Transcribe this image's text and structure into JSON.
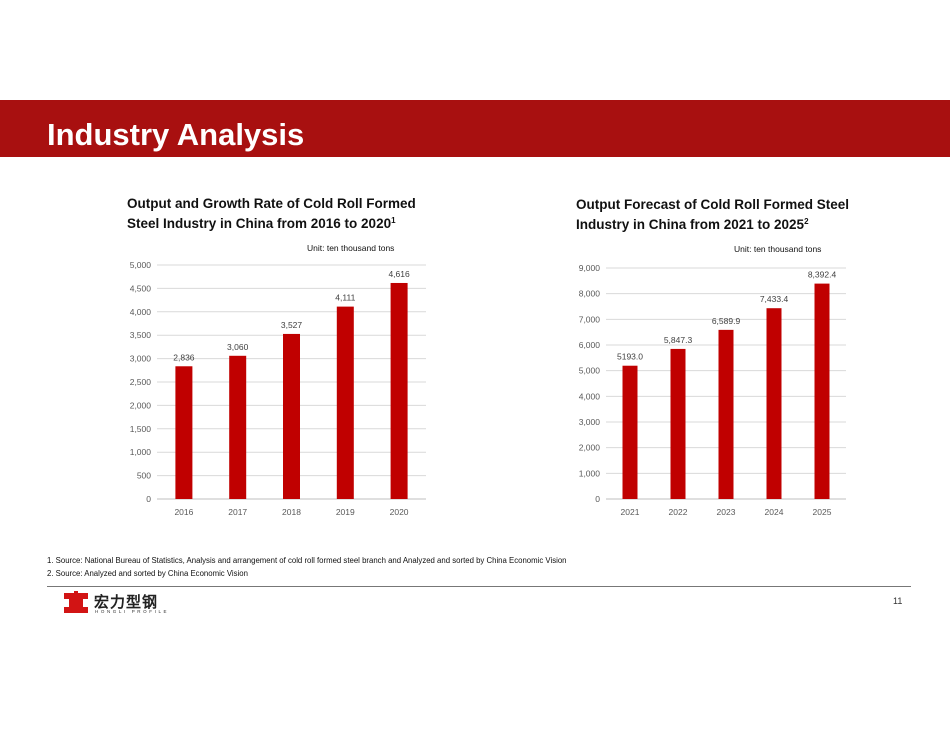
{
  "header": {
    "title": "Industry Analysis"
  },
  "charts": [
    {
      "title_line1": "Output and Growth Rate of Cold Roll Formed",
      "title_line2": "Steel Industry in China from 2016 to 2020",
      "title_sup": "1",
      "unit": "Unit: ten thousand tons"
    },
    {
      "title_line1": "Output Forecast of Cold Roll Formed Steel",
      "title_line2": "Industry in China from 2021 to 2025",
      "title_sup": "2",
      "unit": "Unit: ten thousand tons"
    }
  ],
  "chart_data": [
    {
      "type": "bar",
      "title": "Output and Growth Rate of Cold Roll Formed Steel Industry in China from 2016 to 2020",
      "categories": [
        "2016",
        "2017",
        "2018",
        "2019",
        "2020"
      ],
      "values": [
        2836,
        3060,
        3527,
        4111,
        4616
      ],
      "value_labels": [
        "2,836",
        "3,060",
        "3,527",
        "4,111",
        "4,616"
      ],
      "ylim": [
        0,
        5000
      ],
      "yticks": [
        0,
        500,
        1000,
        1500,
        2000,
        2500,
        3000,
        3500,
        4000,
        4500,
        5000
      ],
      "ytick_labels": [
        "0",
        "500",
        "1,000",
        "1,500",
        "2,000",
        "2,500",
        "3,000",
        "3,500",
        "4,000",
        "4,500",
        "5,000"
      ],
      "grid": true,
      "bar_color": "#c00000"
    },
    {
      "type": "bar",
      "title": "Output Forecast of Cold Roll Formed Steel Industry in China from 2021 to 2025",
      "categories": [
        "2021",
        "2022",
        "2023",
        "2024",
        "2025"
      ],
      "values": [
        5193.0,
        5847.3,
        6589.9,
        7433.4,
        8392.4
      ],
      "value_labels": [
        "5193.0",
        "5,847.3",
        "6,589.9",
        "7,433.4",
        "8,392.4"
      ],
      "ylim": [
        0,
        9000
      ],
      "yticks": [
        0,
        1000,
        2000,
        3000,
        4000,
        5000,
        6000,
        7000,
        8000,
        9000
      ],
      "ytick_labels": [
        "0",
        "1,000",
        "2,000",
        "3,000",
        "4,000",
        "5,000",
        "6,000",
        "7,000",
        "8,000",
        "9,000"
      ],
      "grid": true,
      "bar_color": "#c00000"
    }
  ],
  "notes": [
    "1. Source: National Bureau of Statistics, Analysis and arrangement of cold roll formed steel branch and Analyzed and sorted by China Economic Vision",
    "2. Source: Analyzed and sorted by China Economic Vision"
  ],
  "footer": {
    "logo_cn": "宏力型钢",
    "logo_en": "HONGLI PROFILE",
    "logo_icon": "hongli-logo-icon",
    "page_number": "11"
  },
  "colors": {
    "banner": "#a81010",
    "bar": "#c00000"
  }
}
